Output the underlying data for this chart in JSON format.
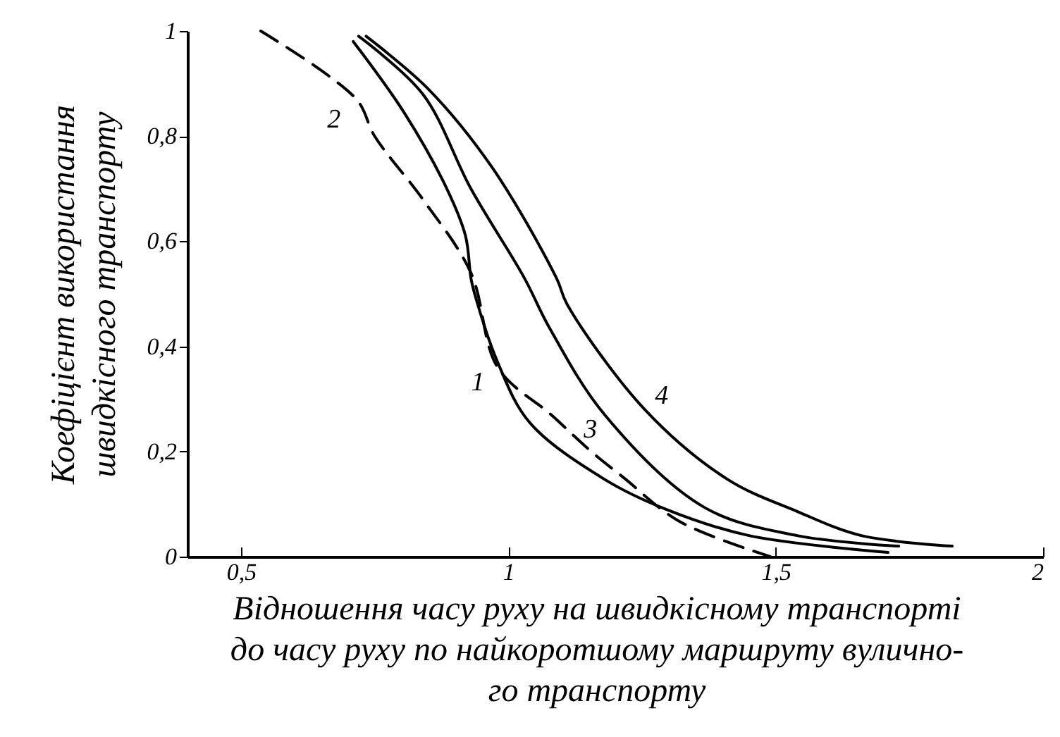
{
  "chart_data": {
    "type": "line",
    "xlabel": "Відношення часу руху на швидкісному транспорті\nдо часу руху по найкоротшому маршруту вулично-\nго транспорту",
    "ylabel": "Коефіцієнт використання\nшвидкісного транспорту",
    "xlim": [
      0.4,
      2.0
    ],
    "ylim": [
      0,
      1
    ],
    "xticks": [
      {
        "value": 0.5,
        "label": "0,5"
      },
      1,
      {
        "value": 1.5,
        "label": "1,5"
      },
      2
    ],
    "yticks": [
      0,
      {
        "value": 0.2,
        "label": "0,2"
      },
      {
        "value": 0.4,
        "label": "0,4"
      },
      {
        "value": 0.6,
        "label": "0,6"
      },
      {
        "value": 0.8,
        "label": "0,8"
      },
      1
    ],
    "grid": false,
    "series": [
      {
        "name": "1",
        "color": "#000000",
        "line_style": "solid",
        "x": [
          0.71,
          0.805,
          0.885,
          0.92,
          0.93,
          0.937,
          0.98,
          1.04,
          1.18,
          1.295,
          1.45,
          1.71
        ],
        "values": [
          0.98,
          0.845,
          0.7,
          0.61,
          0.53,
          0.5,
          0.37,
          0.255,
          0.147,
          0.09,
          0.04,
          0.008
        ]
      },
      {
        "name": "2",
        "color": "#000000",
        "line_style": "dashed",
        "x": [
          0.537,
          0.716,
          0.75,
          0.84,
          0.93,
          0.98,
          1.08,
          1.155,
          1.216,
          1.32,
          1.49
        ],
        "values": [
          1,
          0.87,
          0.8,
          0.68,
          0.54,
          0.36,
          0.27,
          0.2,
          0.15,
          0.067,
          0
        ]
      },
      {
        "name": "3",
        "color": "#000000",
        "line_style": "solid",
        "x": [
          0.72,
          0.84,
          0.93,
          1.03,
          1.076,
          1.18,
          1.366,
          1.54,
          1.73
        ],
        "values": [
          0.99,
          0.88,
          0.7,
          0.53,
          0.437,
          0.27,
          0.094,
          0.04,
          0.02
        ]
      },
      {
        "name": "4",
        "color": "#000000",
        "line_style": "solid",
        "x": [
          0.734,
          0.85,
          0.97,
          1.09,
          1.11,
          1.255,
          1.41,
          1.54,
          1.66,
          1.83
        ],
        "values": [
          0.99,
          0.89,
          0.74,
          0.53,
          0.48,
          0.28,
          0.147,
          0.086,
          0.04,
          0.02
        ]
      }
    ]
  }
}
